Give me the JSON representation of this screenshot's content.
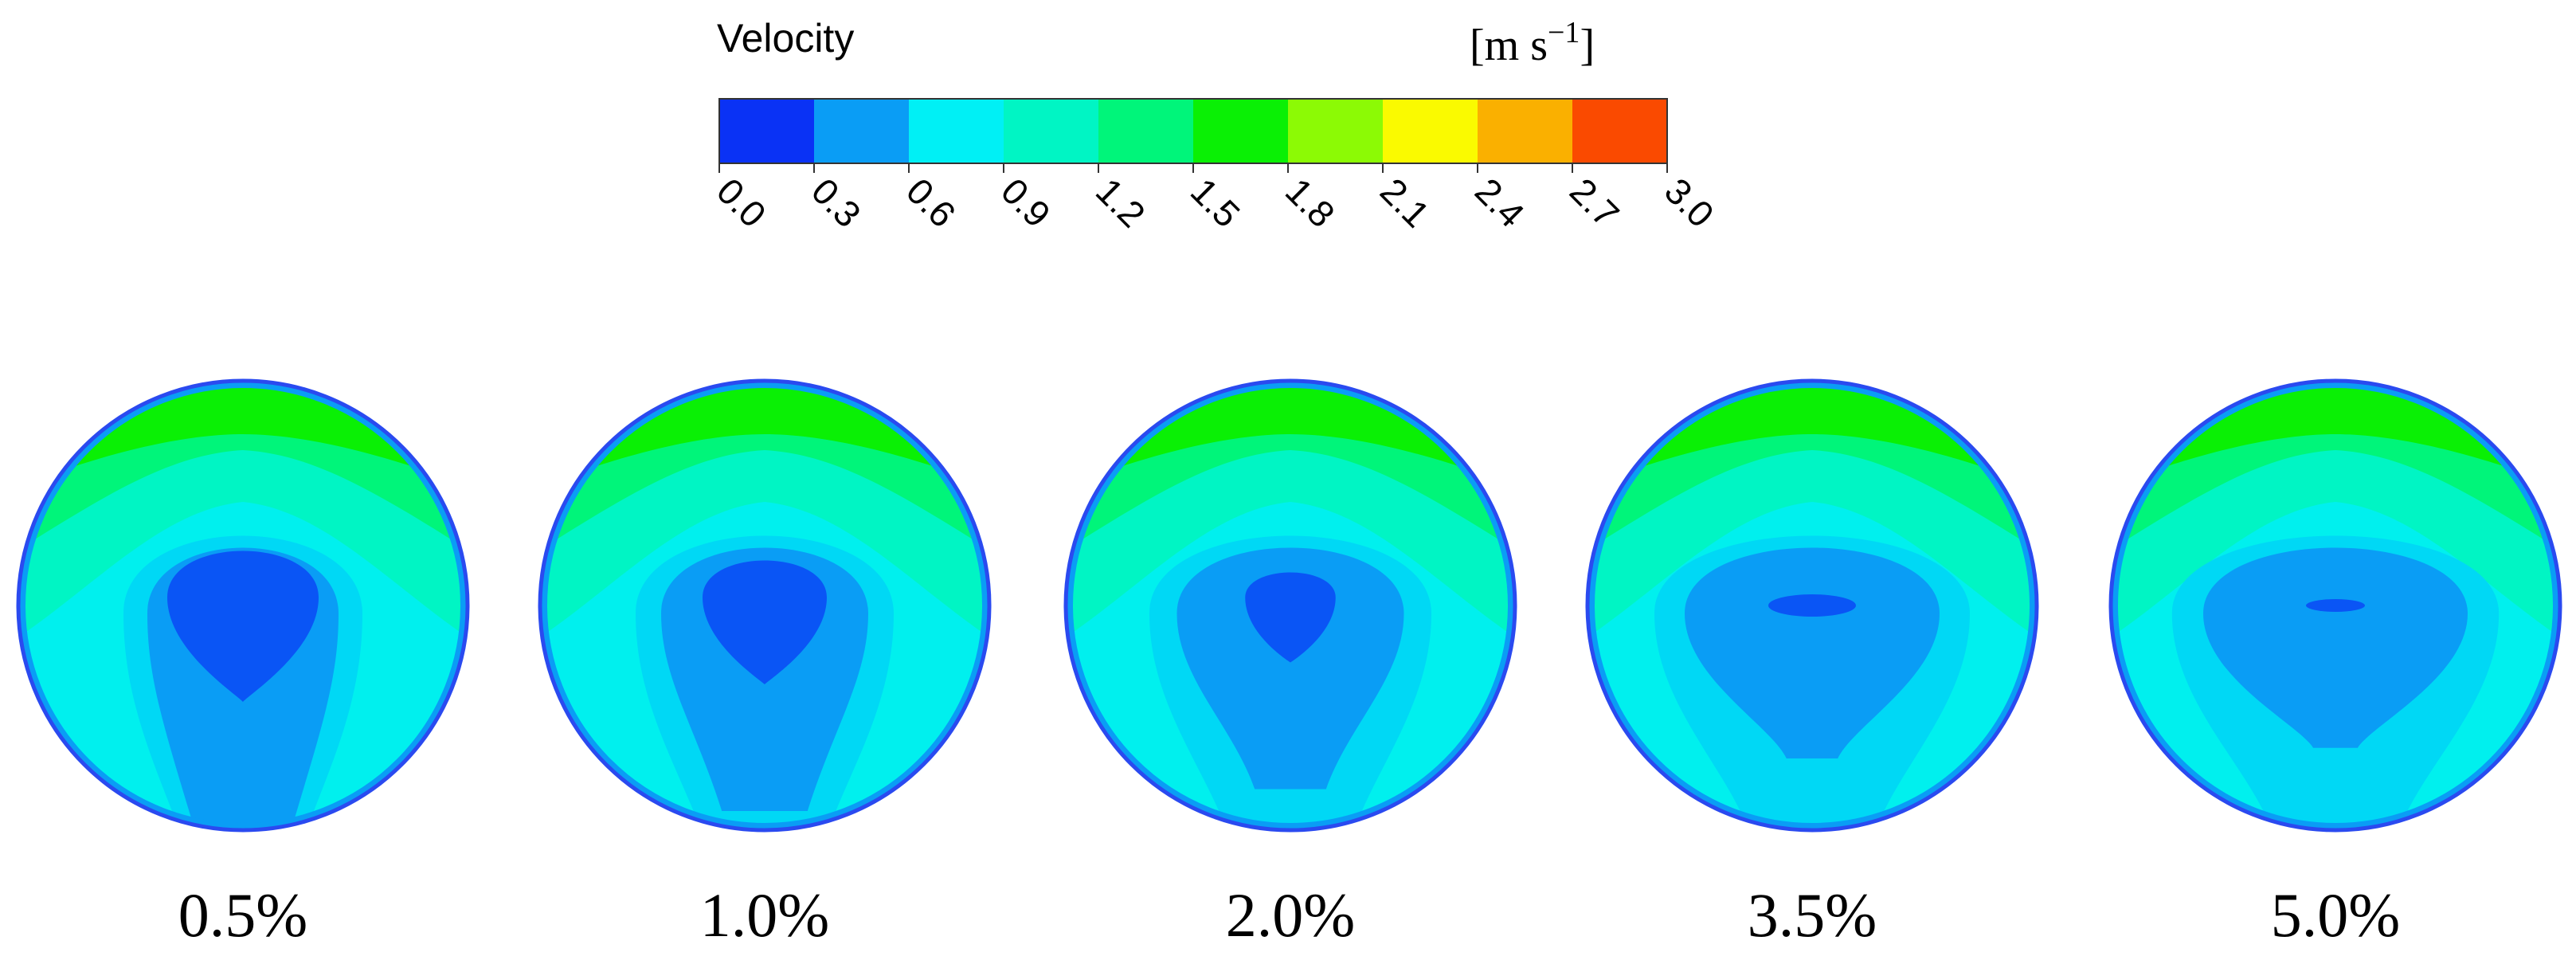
{
  "legend": {
    "title": "Velocity",
    "unit_base": "[m s",
    "unit_exp": "−1",
    "unit_close": "]",
    "bands": [
      {
        "from": 0.0,
        "to": 0.3,
        "color": "#0a32f5"
      },
      {
        "from": 0.3,
        "to": 0.6,
        "color": "#0a9df5"
      },
      {
        "from": 0.6,
        "to": 0.9,
        "color": "#00f0f5"
      },
      {
        "from": 0.9,
        "to": 1.2,
        "color": "#00f5c4"
      },
      {
        "from": 1.2,
        "to": 1.5,
        "color": "#00f57a"
      },
      {
        "from": 1.5,
        "to": 1.8,
        "color": "#0af005"
      },
      {
        "from": 1.8,
        "to": 2.1,
        "color": "#8cfa05"
      },
      {
        "from": 2.1,
        "to": 2.4,
        "color": "#fafa00"
      },
      {
        "from": 2.4,
        "to": 2.7,
        "color": "#fab000"
      },
      {
        "from": 2.7,
        "to": 3.0,
        "color": "#fa4a00"
      }
    ],
    "ticks": [
      "0.0",
      "0.3",
      "0.6",
      "0.9",
      "1.2",
      "1.5",
      "1.8",
      "2.1",
      "2.4",
      "2.7",
      "3.0"
    ]
  },
  "colors": {
    "wall": "#2a4af0",
    "band_0_0": "#0a55f5",
    "band_0_3": "#0a9df5",
    "band_0_6": "#00d8f5",
    "band_0_9": "#00f0ee",
    "band_1_2": "#00f5c4",
    "band_1_5": "#00f57a",
    "band_1_8": "#0af005"
  },
  "cases": [
    {
      "label": "0.5%",
      "core_value": 0.27,
      "core_size": 1.0
    },
    {
      "label": "1.0%",
      "core_value": 0.27,
      "core_size": 0.8
    },
    {
      "label": "2.0%",
      "core_value": 0.27,
      "core_size": 0.55
    },
    {
      "label": "3.5%",
      "core_value": 0.27,
      "core_size": 0.2
    },
    {
      "label": "5.0%",
      "core_value": 0.27,
      "core_size": 0.08
    }
  ]
}
